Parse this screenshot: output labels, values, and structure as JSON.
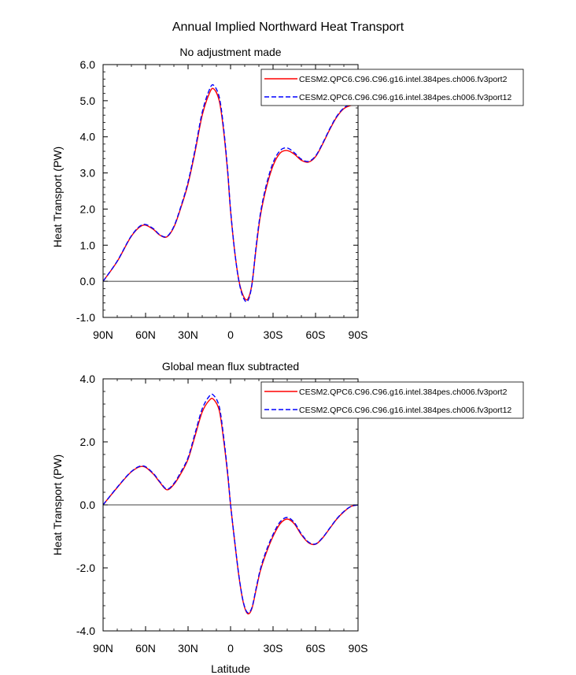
{
  "figure": {
    "title": "Annual Implied Northward Heat Transport"
  },
  "chart_data": [
    {
      "type": "line",
      "title": "No adjustment made",
      "xlabel": "",
      "ylabel": "Heat Transport (PW)",
      "xlim": [
        -90,
        90
      ],
      "ylim": [
        -1,
        6
      ],
      "x_ticks": [
        -90,
        -60,
        -30,
        0,
        30,
        60,
        90
      ],
      "x_tick_labels": [
        "90N",
        "60N",
        "30N",
        "0",
        "30S",
        "60S",
        "90S"
      ],
      "y_ticks": [
        -1,
        0,
        1,
        2,
        3,
        4,
        5,
        6
      ],
      "y_tick_labels": [
        "-1.0",
        "0.0",
        "1.0",
        "2.0",
        "3.0",
        "4.0",
        "5.0",
        "6.0"
      ],
      "zero_line": true,
      "legend": "top-right",
      "x": [
        -90,
        -80,
        -70,
        -62,
        -55,
        -50,
        -45,
        -40,
        -35,
        -30,
        -25,
        -20,
        -15,
        -12,
        -8,
        -5,
        -2,
        0,
        3,
        6,
        9,
        12,
        15,
        18,
        21,
        25,
        30,
        35,
        40,
        45,
        50,
        55,
        60,
        65,
        70,
        75,
        80,
        85,
        90
      ],
      "series": [
        {
          "name": "CESM2.QPC6.C96.C96.g16.intel.384pes.ch006.fv3port2",
          "color": "#ff0000",
          "dash": "solid",
          "values": [
            0.0,
            0.55,
            1.25,
            1.55,
            1.45,
            1.28,
            1.23,
            1.5,
            2.05,
            2.7,
            3.6,
            4.6,
            5.2,
            5.33,
            5.0,
            4.2,
            3.0,
            1.95,
            0.8,
            0.0,
            -0.4,
            -0.5,
            -0.1,
            0.9,
            1.8,
            2.55,
            3.2,
            3.55,
            3.62,
            3.52,
            3.35,
            3.3,
            3.45,
            3.8,
            4.2,
            4.55,
            4.78,
            4.87,
            4.9
          ]
        },
        {
          "name": "CESM2.QPC6.C96.C96.g16.intel.384pes.ch006.fv3port12",
          "color": "#0000ff",
          "dash": "dashed",
          "values": [
            0.0,
            0.56,
            1.26,
            1.57,
            1.47,
            1.29,
            1.24,
            1.52,
            2.08,
            2.75,
            3.66,
            4.68,
            5.3,
            5.43,
            5.1,
            4.28,
            3.05,
            1.98,
            0.8,
            -0.02,
            -0.45,
            -0.55,
            -0.12,
            0.95,
            1.86,
            2.63,
            3.28,
            3.62,
            3.69,
            3.56,
            3.38,
            3.32,
            3.47,
            3.82,
            4.22,
            4.57,
            4.8,
            4.9,
            4.92
          ]
        }
      ]
    },
    {
      "type": "line",
      "title": "Global mean flux subtracted",
      "xlabel": "Latitude",
      "ylabel": "Heat Transport (PW)",
      "xlim": [
        -90,
        90
      ],
      "ylim": [
        -4,
        4
      ],
      "x_ticks": [
        -90,
        -60,
        -30,
        0,
        30,
        60,
        90
      ],
      "x_tick_labels": [
        "90N",
        "60N",
        "30N",
        "0",
        "30S",
        "60S",
        "90S"
      ],
      "y_ticks": [
        -4,
        -2,
        0,
        2,
        4
      ],
      "y_tick_labels": [
        "-4.0",
        "-2.0",
        "0.0",
        "2.0",
        "4.0"
      ],
      "zero_line": true,
      "legend": "top-right",
      "x": [
        -90,
        -80,
        -70,
        -62,
        -55,
        -50,
        -45,
        -40,
        -35,
        -30,
        -25,
        -20,
        -15,
        -12,
        -8,
        -5,
        -2,
        0,
        3,
        6,
        9,
        12,
        15,
        18,
        21,
        25,
        30,
        35,
        40,
        45,
        50,
        55,
        60,
        65,
        70,
        75,
        80,
        85,
        90
      ],
      "series": [
        {
          "name": "CESM2.QPC6.C96.C96.g16.intel.384pes.ch006.fv3port2",
          "color": "#ff0000",
          "dash": "solid",
          "values": [
            0.0,
            0.55,
            1.05,
            1.22,
            1.0,
            0.72,
            0.48,
            0.65,
            1.0,
            1.45,
            2.2,
            2.95,
            3.32,
            3.35,
            3.0,
            2.1,
            0.95,
            0.0,
            -1.2,
            -2.3,
            -3.1,
            -3.45,
            -3.3,
            -2.7,
            -2.1,
            -1.55,
            -1.0,
            -0.6,
            -0.45,
            -0.6,
            -0.95,
            -1.2,
            -1.25,
            -1.05,
            -0.75,
            -0.45,
            -0.22,
            -0.05,
            0.0
          ]
        },
        {
          "name": "CESM2.QPC6.C96.C96.g16.intel.384pes.ch006.fv3port12",
          "color": "#0000ff",
          "dash": "dashed",
          "values": [
            0.0,
            0.56,
            1.06,
            1.24,
            1.02,
            0.74,
            0.5,
            0.68,
            1.05,
            1.5,
            2.28,
            3.05,
            3.45,
            3.48,
            3.12,
            2.2,
            1.0,
            0.02,
            -1.18,
            -2.28,
            -3.08,
            -3.42,
            -3.27,
            -2.66,
            -2.05,
            -1.48,
            -0.94,
            -0.54,
            -0.4,
            -0.56,
            -0.92,
            -1.18,
            -1.24,
            -1.04,
            -0.74,
            -0.44,
            -0.21,
            -0.05,
            0.0
          ]
        }
      ]
    }
  ]
}
